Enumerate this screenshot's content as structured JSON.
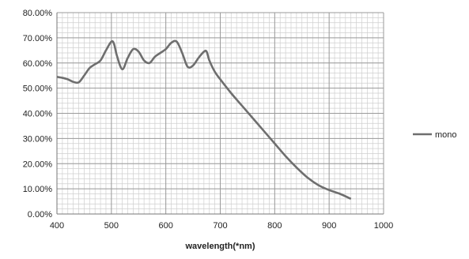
{
  "chart_data": {
    "type": "line",
    "title": "",
    "xlabel": "wavelength(*nm)",
    "ylabel": "",
    "xlim": [
      400,
      1000
    ],
    "ylim": [
      0,
      0.8
    ],
    "x_major_ticks": [
      400,
      500,
      600,
      700,
      800,
      900,
      1000
    ],
    "x_tick_labels": [
      "400",
      "500",
      "600",
      "700",
      "800",
      "900",
      "1000"
    ],
    "y_major_ticks": [
      0,
      0.1,
      0.2,
      0.3,
      0.4,
      0.5,
      0.6,
      0.7,
      0.8
    ],
    "y_tick_labels": [
      "0.00%",
      "10.00%",
      "20.00%",
      "30.00%",
      "40.00%",
      "50.00%",
      "60.00%",
      "70.00%",
      "80.00%"
    ],
    "grid": true,
    "minor_grid": true,
    "legend_position": "right",
    "series": [
      {
        "name": "mono",
        "color": "#6e6e6e",
        "x": [
          400,
          410,
          420,
          430,
          440,
          450,
          460,
          470,
          480,
          490,
          500,
          505,
          510,
          520,
          530,
          540,
          550,
          560,
          570,
          580,
          590,
          600,
          610,
          620,
          630,
          640,
          650,
          660,
          670,
          675,
          680,
          690,
          700,
          720,
          740,
          760,
          780,
          800,
          820,
          840,
          860,
          880,
          900,
          920,
          940
        ],
        "y": [
          0.545,
          0.541,
          0.535,
          0.525,
          0.523,
          0.55,
          0.58,
          0.595,
          0.61,
          0.65,
          0.685,
          0.675,
          0.63,
          0.575,
          0.62,
          0.655,
          0.645,
          0.61,
          0.6,
          0.625,
          0.64,
          0.655,
          0.68,
          0.685,
          0.64,
          0.585,
          0.59,
          0.62,
          0.645,
          0.645,
          0.61,
          0.565,
          0.535,
          0.48,
          0.43,
          0.38,
          0.33,
          0.28,
          0.23,
          0.185,
          0.145,
          0.115,
          0.095,
          0.08,
          0.06
        ]
      }
    ]
  }
}
